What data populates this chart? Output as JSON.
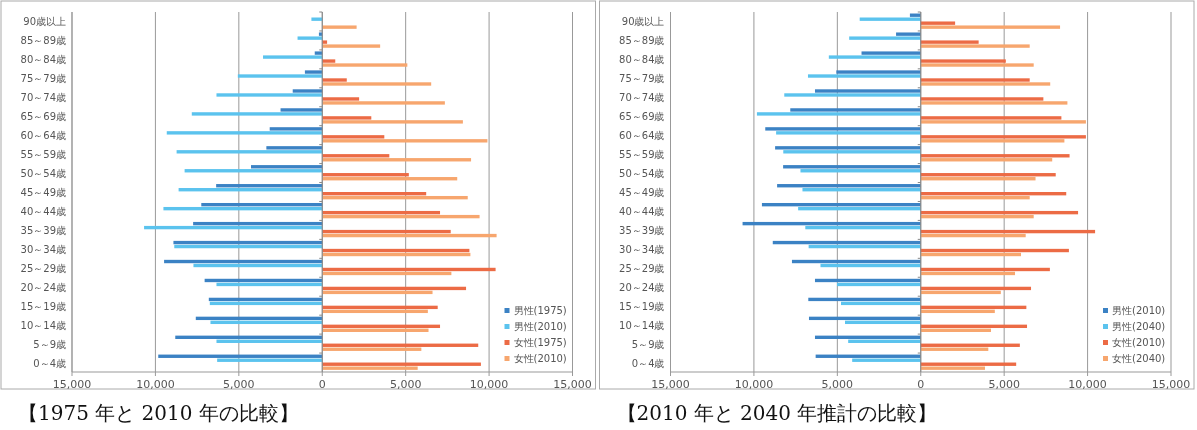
{
  "chart_data": [
    {
      "type": "bar",
      "orientation": "horizontal",
      "title": "【1975 年と 2010 年の比較】",
      "categories": [
        "90歳以上",
        "85～89歳",
        "80～84歳",
        "75～79歳",
        "70～74歳",
        "65～69歳",
        "60～64歳",
        "55～59歳",
        "50～54歳",
        "45～49歳",
        "40～44歳",
        "35～39歳",
        "30～34歳",
        "25～29歳",
        "20～24歳",
        "15～19歳",
        "10～14歳",
        "5～9歳",
        "0～4歳"
      ],
      "series": [
        {
          "name": "男性(1975)",
          "color": "#3b82c4",
          "values": [
            null,
            -200,
            -450,
            -1040,
            -1770,
            -2500,
            -3150,
            -3350,
            -4270,
            -6360,
            -7250,
            -7740,
            -8920,
            -9480,
            -7050,
            -6800,
            -7580,
            -8810,
            -9830
          ]
        },
        {
          "name": "男性(2010)",
          "color": "#5bc3ee",
          "values": [
            -650,
            -1480,
            -3550,
            -5060,
            -6340,
            -7820,
            -9320,
            -8730,
            -8250,
            -8610,
            -9520,
            -10680,
            -8870,
            -7720,
            -6340,
            -6740,
            -6700,
            -6340,
            -6300
          ]
        },
        {
          "name": "女性(1975)",
          "color": "#ec6b45",
          "values": [
            null,
            290,
            780,
            1470,
            2210,
            2940,
            3720,
            4020,
            5190,
            6230,
            7060,
            7700,
            8820,
            10390,
            8620,
            6920,
            7060,
            9350,
            9510
          ]
        },
        {
          "name": "女性(2010)",
          "color": "#f7a66e",
          "values": [
            2060,
            3470,
            5100,
            6530,
            7350,
            8430,
            9900,
            8920,
            8090,
            8720,
            9430,
            10450,
            8880,
            7740,
            6610,
            6330,
            6370,
            5940,
            5720
          ]
        }
      ],
      "xlim": [
        -15000,
        15000
      ],
      "xticks": [
        {
          "value": -15000,
          "label": "15,000"
        },
        {
          "value": -10000,
          "label": "10,000"
        },
        {
          "value": -5000,
          "label": "5,000"
        },
        0,
        {
          "value": 5000,
          "label": "5,000"
        },
        {
          "value": 10000,
          "label": "10,000"
        },
        {
          "value": 15000,
          "label": "15,000"
        }
      ],
      "grid": "x",
      "legend": "bottom right"
    },
    {
      "type": "bar",
      "orientation": "horizontal",
      "title": "【2010 年と 2040 年推計の比較】",
      "categories": [
        "90歳以上",
        "85～89歳",
        "80～84歳",
        "75～79歳",
        "70～74歳",
        "65～69歳",
        "60～64歳",
        "55～59歳",
        "50～54歳",
        "45～49歳",
        "40～44歳",
        "35～39歳",
        "30～34歳",
        "25～29歳",
        "20～24歳",
        "15～19歳",
        "10～14歳",
        "5～9歳",
        "0～4歳"
      ],
      "series": [
        {
          "name": "男性(2010)",
          "color": "#3b82c4",
          "values": [
            -650,
            -1480,
            -3550,
            -5060,
            -6340,
            -7820,
            -9320,
            -8730,
            -8250,
            -8610,
            -9520,
            -10680,
            -8870,
            -7720,
            -6340,
            -6740,
            -6700,
            -6340,
            -6300
          ]
        },
        {
          "name": "男性(2040)",
          "color": "#5bc3ee",
          "values": [
            -3660,
            -4290,
            -5510,
            -6760,
            -8180,
            -9820,
            -8670,
            -8240,
            -7210,
            -7090,
            -7350,
            -6920,
            -6720,
            -6010,
            -5020,
            -4780,
            -4540,
            -4350,
            -4110
          ]
        },
        {
          "name": "女性(2010)",
          "color": "#ec6b45",
          "values": [
            2060,
            3470,
            5100,
            6530,
            7350,
            8430,
            9900,
            8920,
            8090,
            8720,
            9430,
            10450,
            8880,
            7740,
            6610,
            6330,
            6370,
            5940,
            5720
          ]
        },
        {
          "name": "女性(2040)",
          "color": "#f7a66e",
          "values": [
            8350,
            6530,
            6770,
            7760,
            8790,
            9900,
            8610,
            7880,
            6880,
            6530,
            6770,
            6290,
            6010,
            5650,
            4800,
            4440,
            4210,
            4050,
            3850
          ]
        }
      ],
      "xlim": [
        -15000,
        15000
      ],
      "xticks": [
        {
          "value": -15000,
          "label": "15,000"
        },
        {
          "value": -10000,
          "label": "10,000"
        },
        {
          "value": -5000,
          "label": "5,000"
        },
        0,
        {
          "value": 5000,
          "label": "5,000"
        },
        {
          "value": 10000,
          "label": "10,000"
        },
        {
          "value": 15000,
          "label": "15,000"
        }
      ],
      "grid": "x",
      "legend": "bottom right"
    }
  ]
}
